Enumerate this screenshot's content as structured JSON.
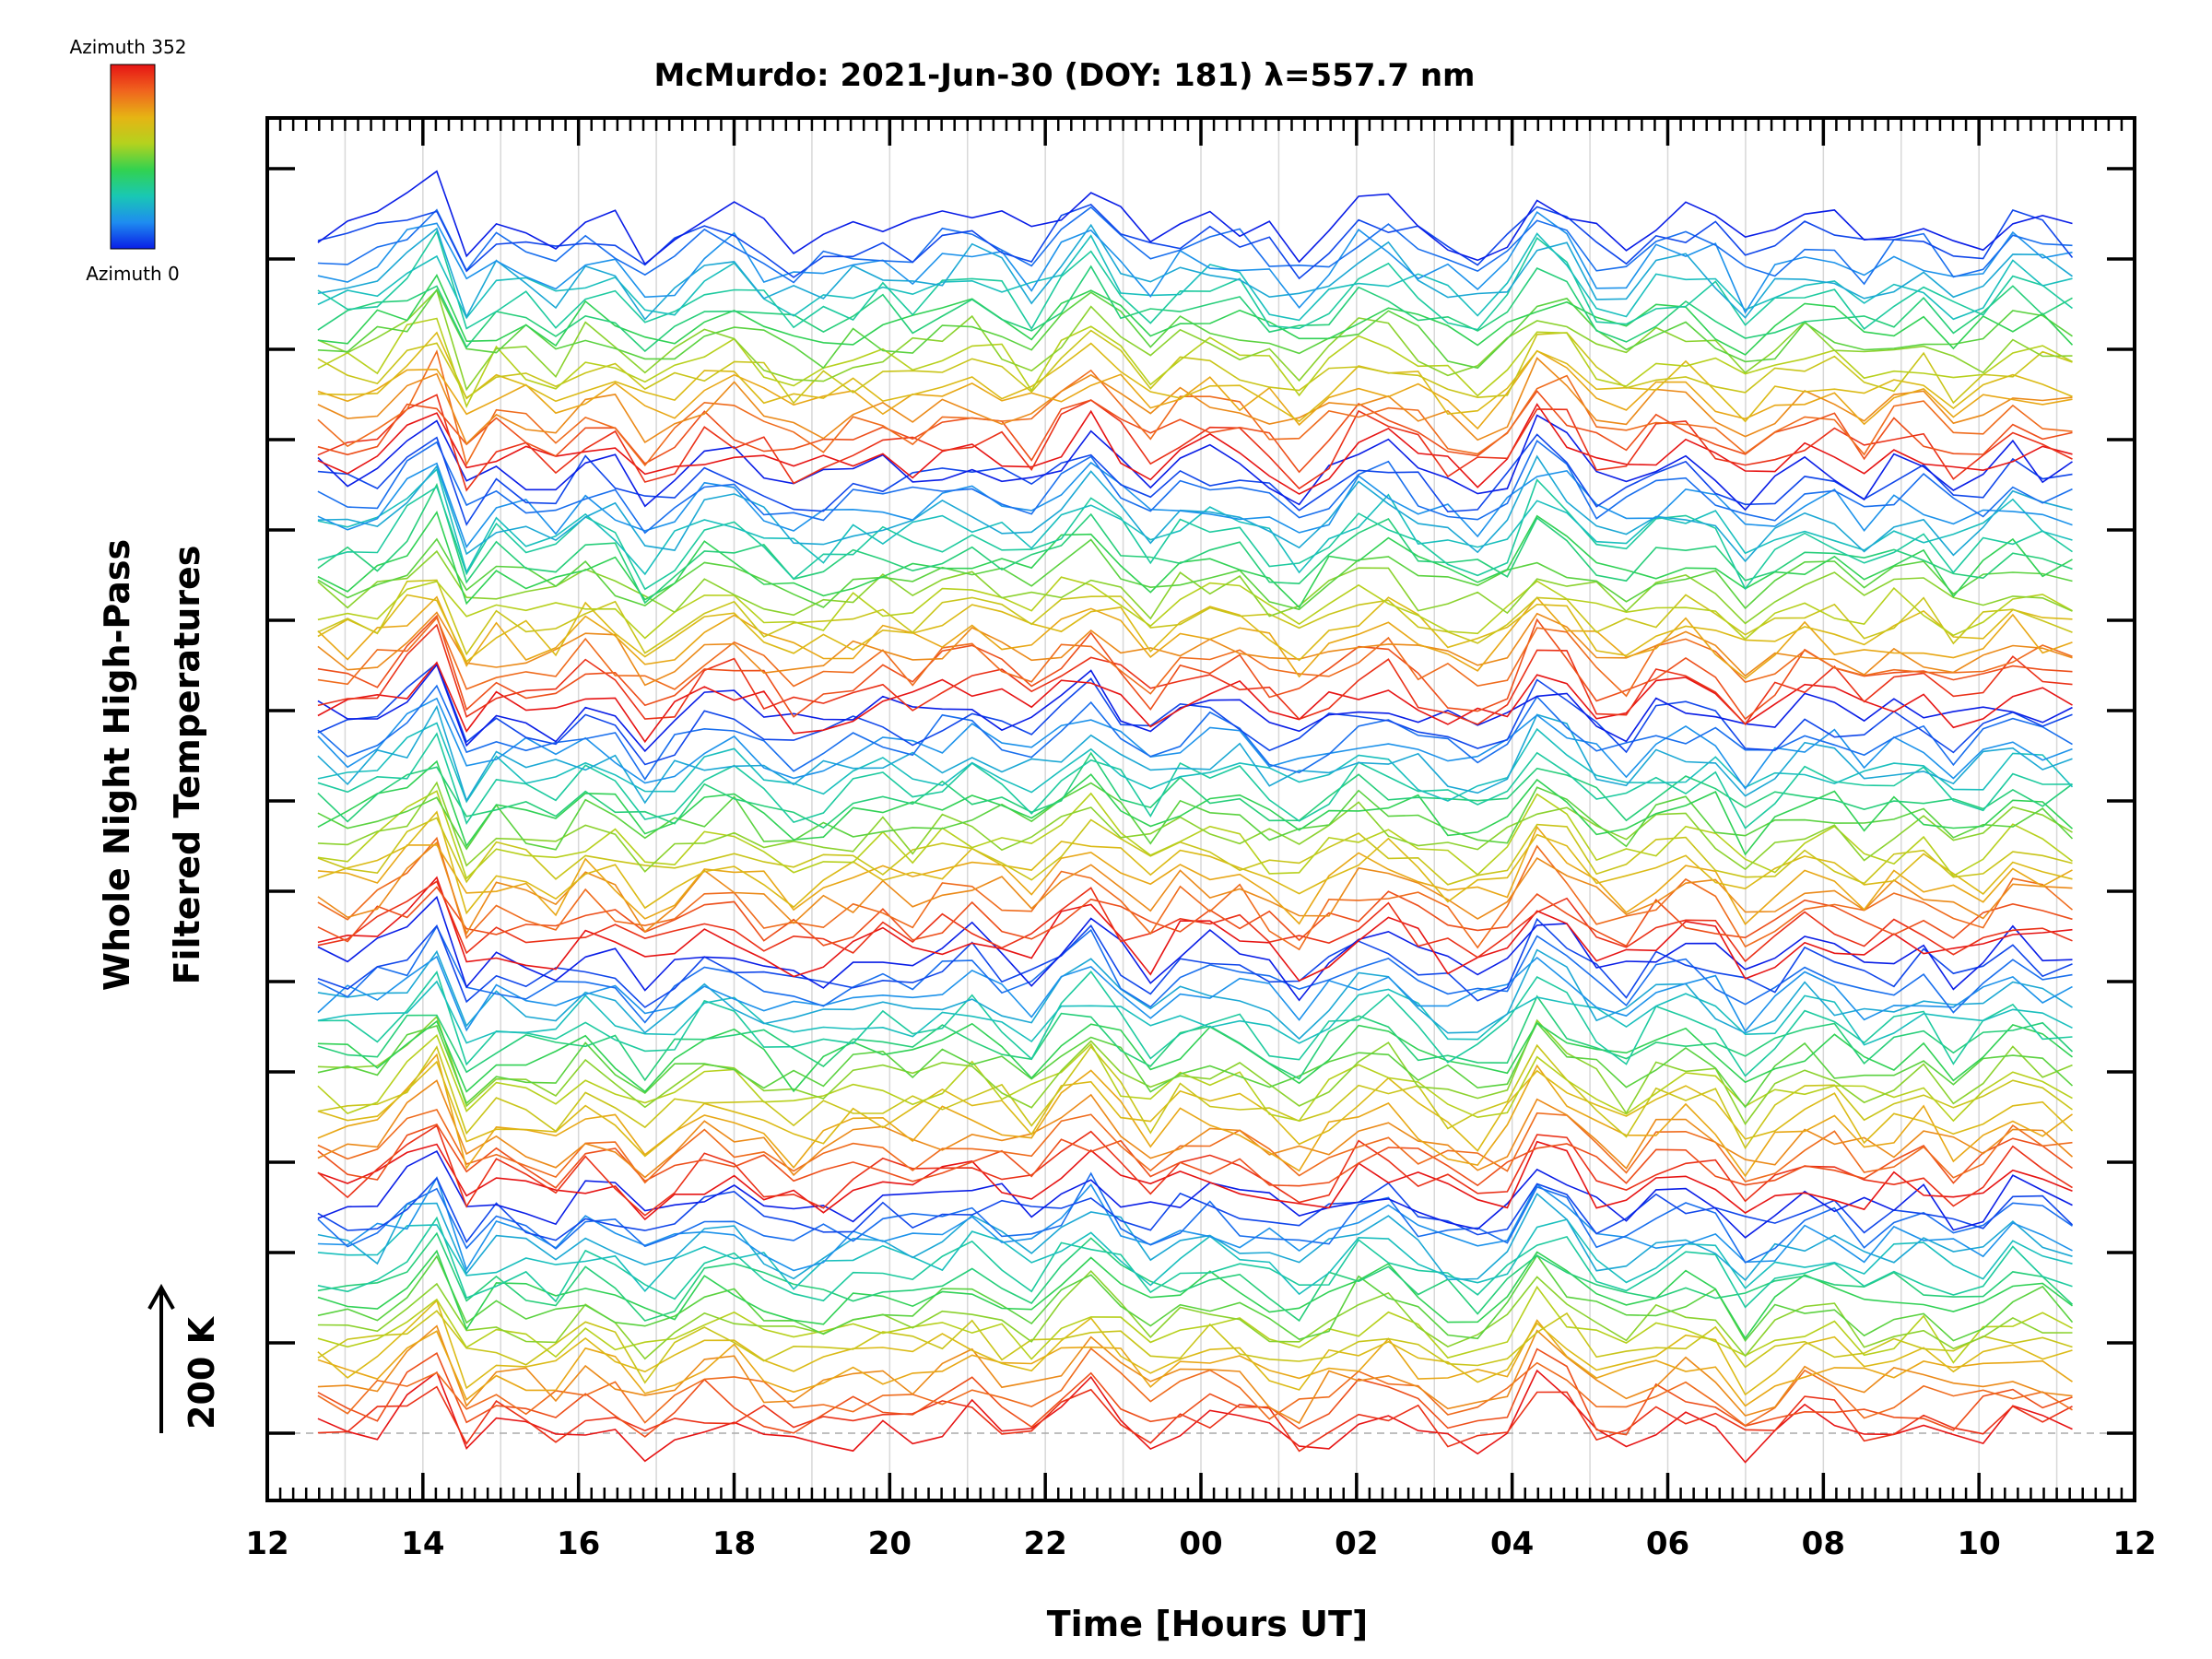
{
  "chart_data": {
    "type": "line",
    "title": "McMurdo: 2021-Jun-30 (DOY: 181) λ=557.7 nm",
    "xlabel": "Time [Hours UT]",
    "ylabel_line1": "Whole Night High-Pass",
    "ylabel_line2": "Filtered Temperatures",
    "scale_label": "200 K",
    "x_range_hours": [
      12,
      36
    ],
    "x_tick_values": [
      12,
      14,
      16,
      18,
      20,
      22,
      24,
      26,
      28,
      30,
      32,
      34,
      36
    ],
    "x_tick_labels": [
      "12",
      "14",
      "16",
      "18",
      "20",
      "22",
      "00",
      "02",
      "04",
      "06",
      "08",
      "10",
      "12"
    ],
    "data_start_hour": 12.65,
    "data_end_hour": 35.2,
    "samples_per_trace": 60,
    "trace_count": 100,
    "stacked_offset_ticks": 15,
    "colorbar": {
      "top_label": "Azimuth 352",
      "bottom_label": "Azimuth 0",
      "min_azimuth": 0,
      "max_azimuth": 352,
      "colors": [
        "#0a1ee6",
        "#1e8cf0",
        "#19c8b4",
        "#32d250",
        "#b4d21e",
        "#e6b414",
        "#f0641e",
        "#e61414"
      ]
    },
    "common_signal": [
      {
        "hour": 12.65,
        "value": 0.0
      },
      {
        "hour": 13.25,
        "value": -0.1
      },
      {
        "hour": 13.95,
        "value": 0.6
      },
      {
        "hour": 14.1,
        "value": 1.3
      },
      {
        "hour": 14.45,
        "value": -0.55
      },
      {
        "hour": 15.0,
        "value": 0.15
      },
      {
        "hour": 15.8,
        "value": -0.25
      },
      {
        "hour": 16.2,
        "value": 0.45
      },
      {
        "hour": 16.9,
        "value": -0.5
      },
      {
        "hour": 17.8,
        "value": 0.4
      },
      {
        "hour": 18.8,
        "value": -0.35
      },
      {
        "hour": 19.9,
        "value": 0.1
      },
      {
        "hour": 20.1,
        "value": -0.15
      },
      {
        "hour": 21.0,
        "value": 0.35
      },
      {
        "hour": 21.9,
        "value": -0.2
      },
      {
        "hour": 22.5,
        "value": 0.85
      },
      {
        "hour": 23.2,
        "value": -0.05
      },
      {
        "hour": 23.65,
        "value": -0.5
      },
      {
        "hour": 23.75,
        "value": 0.3
      },
      {
        "hour": 24.5,
        "value": 0.15
      },
      {
        "hour": 25.3,
        "value": -0.4
      },
      {
        "hour": 26.2,
        "value": 0.55
      },
      {
        "hour": 27.0,
        "value": -0.15
      },
      {
        "hour": 27.8,
        "value": -0.35
      },
      {
        "hour": 28.4,
        "value": 0.95
      },
      {
        "hour": 29.3,
        "value": -0.4
      },
      {
        "hour": 30.0,
        "value": 0.3
      },
      {
        "hour": 30.8,
        "value": 0.05
      },
      {
        "hour": 31.0,
        "value": -0.45
      },
      {
        "hour": 31.9,
        "value": 0.35
      },
      {
        "hour": 32.5,
        "value": -0.2
      },
      {
        "hour": 33.2,
        "value": 0.2
      },
      {
        "hour": 33.8,
        "value": -0.35
      },
      {
        "hour": 34.4,
        "value": 0.3
      },
      {
        "hour": 35.2,
        "value": 0.0
      }
    ]
  }
}
